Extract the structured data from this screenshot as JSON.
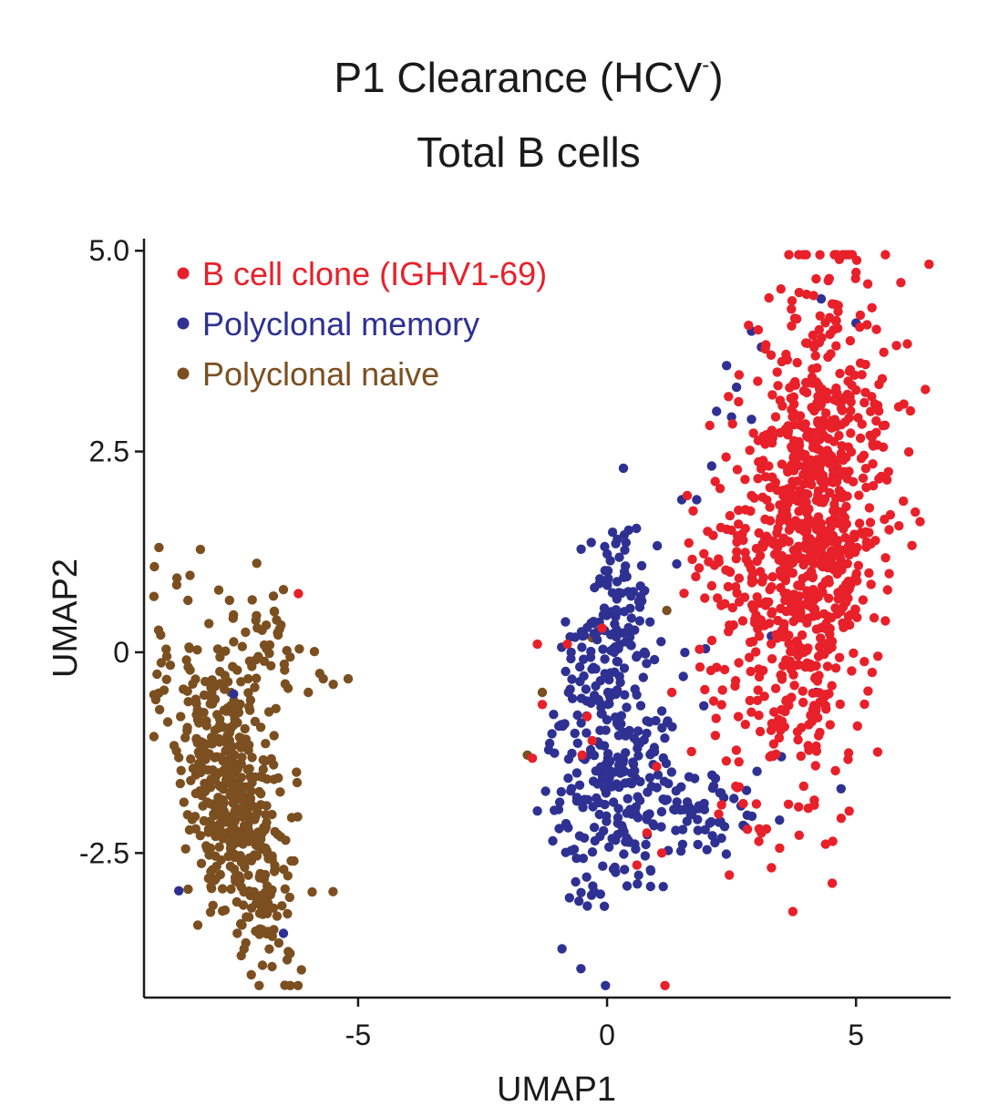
{
  "chart_data": {
    "type": "scatter",
    "title_main": "P1 Clearance (HCV",
    "title_sup": "-",
    "title_close": ")",
    "subtitle": "Total B cells",
    "xlabel": "UMAP1",
    "ylabel": "UMAP2",
    "xlim": [
      -9.3,
      6.9
    ],
    "ylim": [
      -4.3,
      5.15
    ],
    "xticks": [
      -5,
      0,
      5
    ],
    "xtick_labels": [
      "-5",
      "0",
      "5"
    ],
    "yticks": [
      -2.5,
      0,
      2.5,
      5.0
    ],
    "ytick_labels": [
      "-2.5",
      "0",
      "2.5",
      "5.0"
    ],
    "grid": false,
    "legend_position": "top-left",
    "series": [
      {
        "name": "B cell clone (IGHV1-69)",
        "color": "#e8202a",
        "count": 950,
        "clusters": [
          {
            "cx": 4.1,
            "cy": 1.5,
            "sx": 0.75,
            "sy": 1.55,
            "n": 880,
            "corr": 0.25
          },
          {
            "cx": 2.2,
            "cy": 0.5,
            "sx": 0.45,
            "sy": 0.9,
            "n": 50,
            "corr": 0.0
          }
        ],
        "extra_points": [
          [
            -6.2,
            0.73
          ],
          [
            -0.8,
            0.1
          ],
          [
            -1.4,
            0.1
          ],
          [
            -0.1,
            0.3
          ],
          [
            -1.3,
            -0.65
          ],
          [
            -0.4,
            -0.8
          ],
          [
            -0.3,
            -1.1
          ],
          [
            -0.5,
            -1.28
          ],
          [
            -1.5,
            -1.32
          ],
          [
            0.8,
            -2.25
          ],
          [
            1.1,
            -2.5
          ],
          [
            0.6,
            -2.65
          ],
          [
            3.2,
            -2.2
          ],
          [
            3.1,
            -2.25
          ],
          [
            2.3,
            -1.9
          ],
          [
            1.3,
            -0.5
          ]
        ]
      },
      {
        "name": "Polyclonal memory",
        "color": "#2e3192",
        "count": 470,
        "clusters": [
          {
            "cx": 0.1,
            "cy": -1.2,
            "sx": 0.65,
            "sy": 0.95,
            "n": 300,
            "corr": 0.1
          },
          {
            "cx": 0.2,
            "cy": 0.6,
            "sx": 0.35,
            "sy": 0.6,
            "n": 70,
            "corr": 0.0
          },
          {
            "cx": 1.9,
            "cy": -2.05,
            "sx": 0.6,
            "sy": 0.3,
            "n": 60,
            "corr": 0.0
          }
        ],
        "extra_points": [
          [
            2.4,
            3.57
          ],
          [
            2.6,
            3.3
          ],
          [
            2.5,
            2.93
          ],
          [
            2.9,
            2.9
          ],
          [
            2.1,
            2.32
          ],
          [
            1.8,
            1.9
          ],
          [
            1.5,
            1.9
          ],
          [
            3.1,
            3.8
          ],
          [
            2.9,
            4.0
          ],
          [
            4.3,
            4.4
          ],
          [
            5.0,
            4.1
          ],
          [
            1.4,
            1.1
          ],
          [
            -7.5,
            -0.52
          ],
          [
            -8.6,
            -2.97
          ],
          [
            -6.5,
            -3.5
          ],
          [
            2.2,
            3.0
          ],
          [
            3.5,
            -1.3
          ],
          [
            4.2,
            -0.5
          ],
          [
            4.7,
            -1.7
          ],
          [
            3.3,
            0.2
          ]
        ]
      },
      {
        "name": "Polyclonal naive",
        "color": "#7b4f20",
        "count": 540,
        "clusters": [
          {
            "cx": -7.5,
            "cy": -1.8,
            "sx": 0.62,
            "sy": 1.05,
            "n": 500,
            "corr": -0.55
          },
          {
            "cx": -6.8,
            "cy": 0.05,
            "sx": 0.35,
            "sy": 0.35,
            "n": 40,
            "corr": 0.0
          }
        ],
        "extra_points": [
          [
            -5.2,
            -0.33
          ],
          [
            -5.7,
            -0.33
          ],
          [
            -5.5,
            -0.4
          ],
          [
            -6.0,
            -0.5
          ],
          [
            -6.5,
            0.78
          ],
          [
            -6.7,
            0.7
          ],
          [
            -0.3,
            0.18
          ],
          [
            1.2,
            0.52
          ],
          [
            -1.3,
            -0.5
          ],
          [
            -1.6,
            -1.28
          ]
        ]
      }
    ]
  }
}
